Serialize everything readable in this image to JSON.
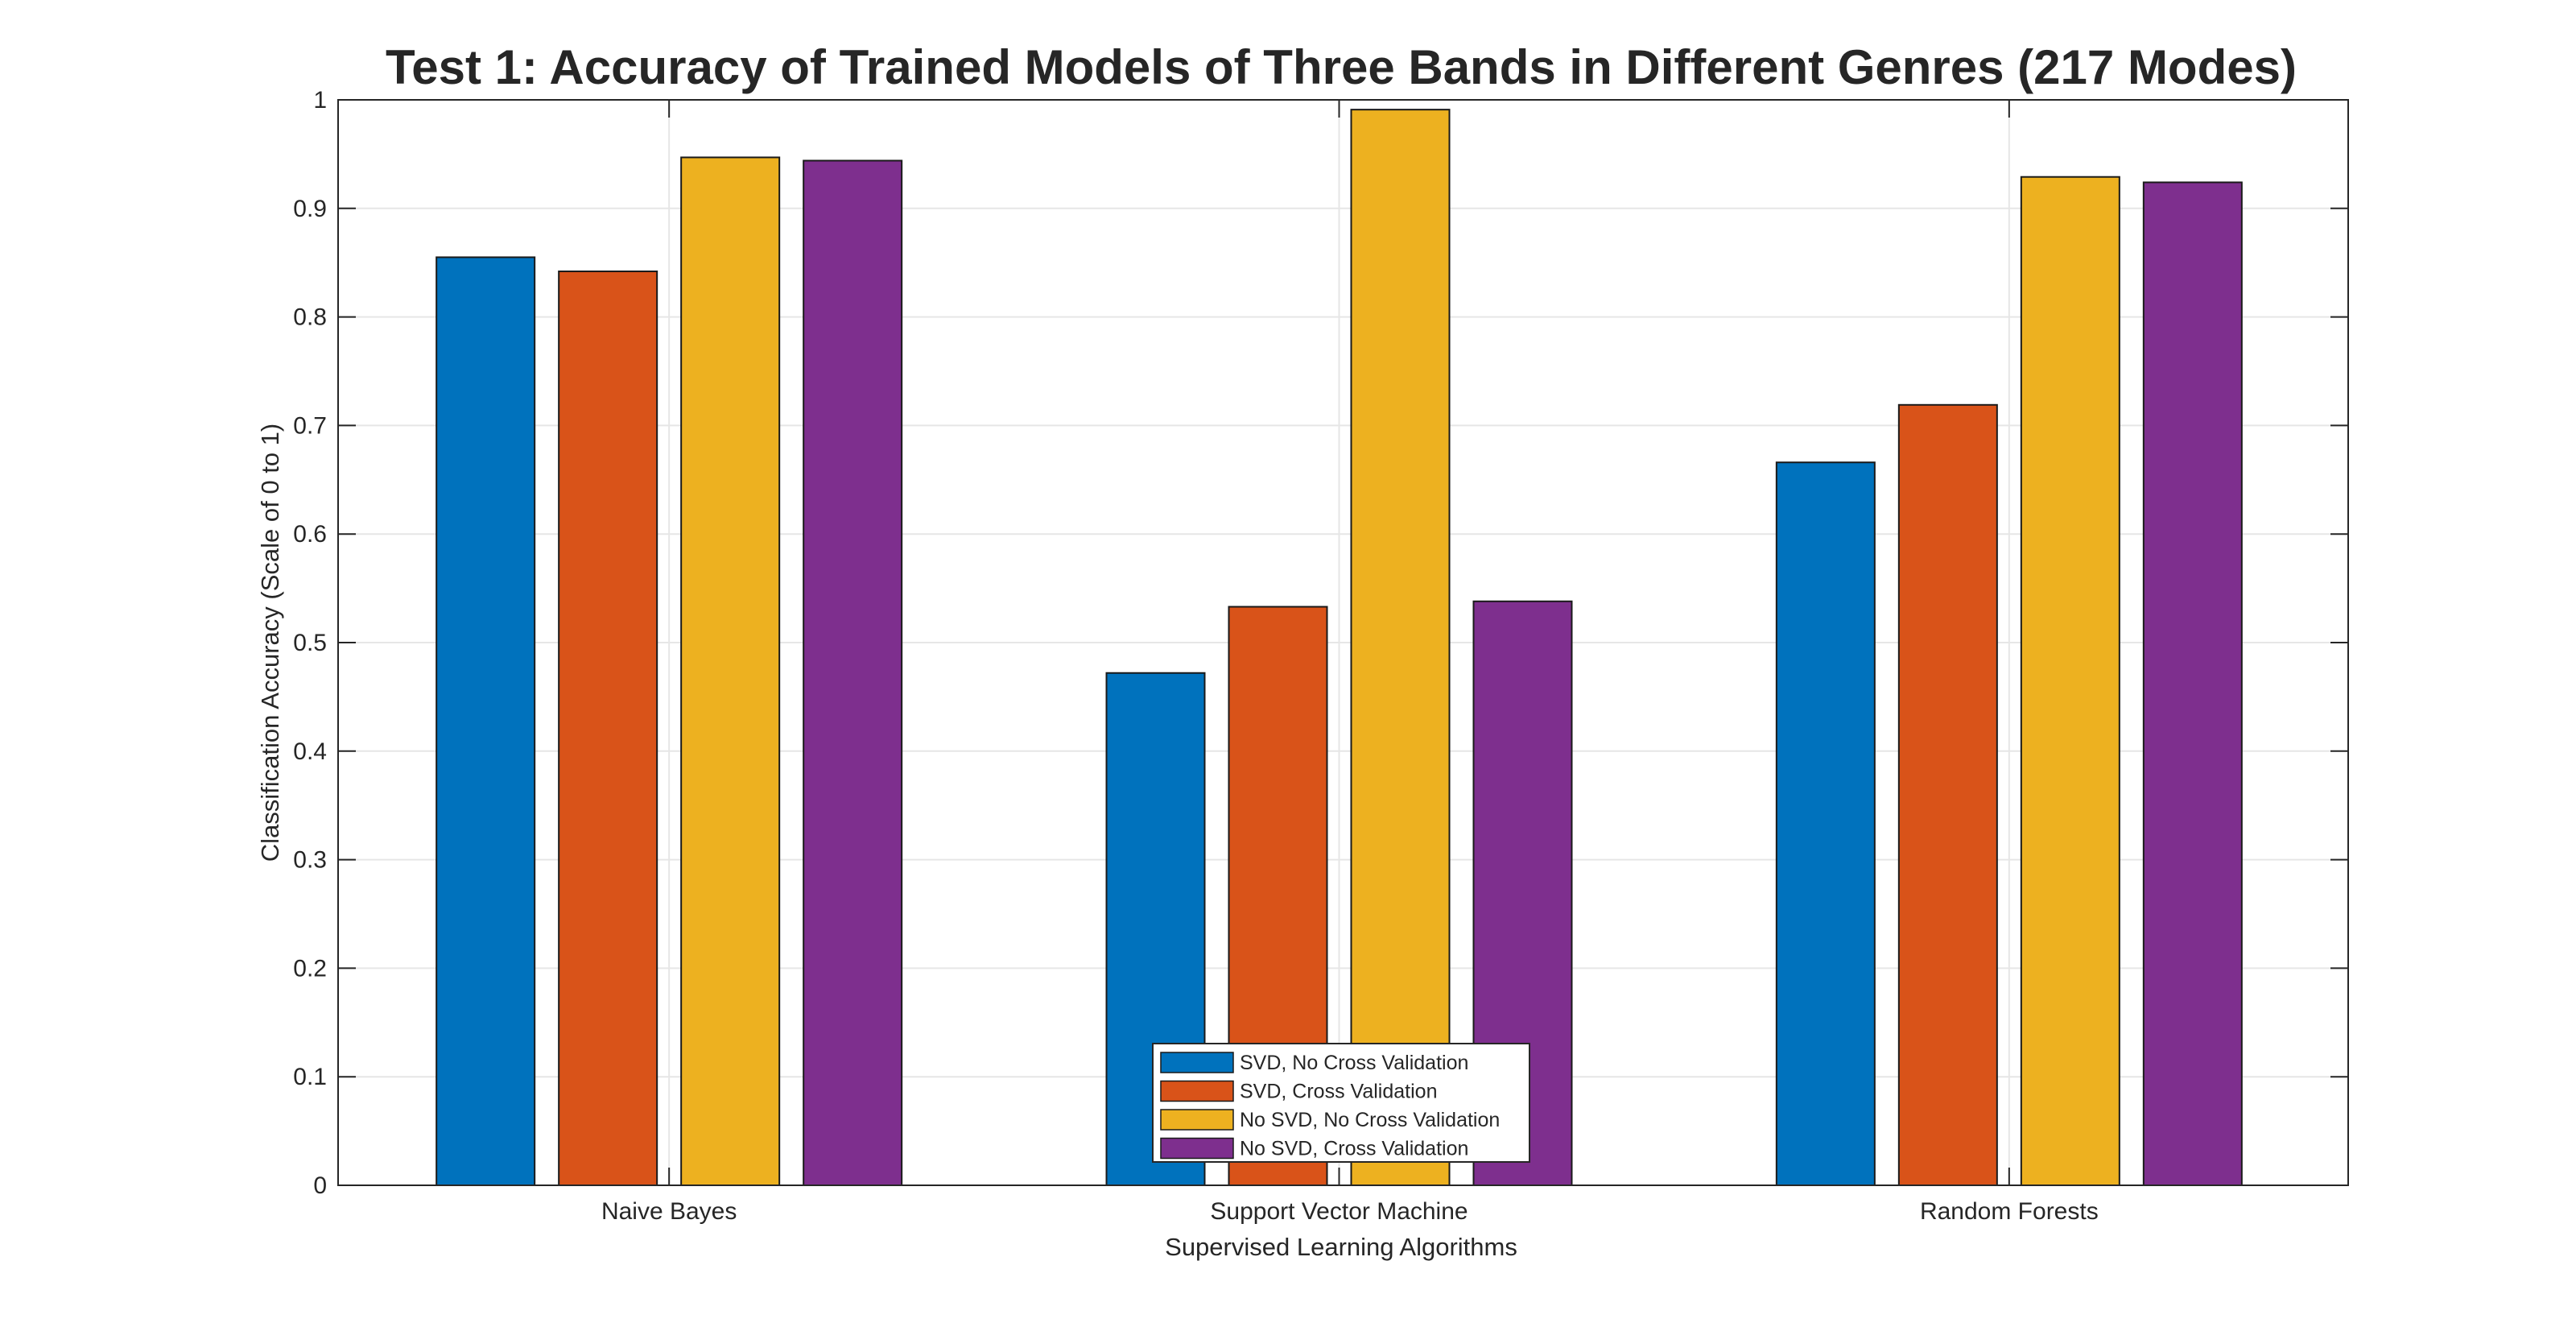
{
  "chart_data": {
    "type": "bar",
    "title": "Test 1: Accuracy of Trained Models of Three Bands in Different Genres (217 Modes)",
    "xlabel": "Supervised Learning Algorithms",
    "ylabel": "Classification Accuracy (Scale of 0 to 1)",
    "categories": [
      "Naive Bayes",
      "Support Vector Machine",
      "Random Forests"
    ],
    "ylim": [
      0,
      1
    ],
    "yticks": [
      "0",
      "0.1",
      "0.2",
      "0.3",
      "0.4",
      "0.5",
      "0.6",
      "0.7",
      "0.8",
      "0.9",
      "1"
    ],
    "grid": true,
    "legend_placement": "bottom-center",
    "series": [
      {
        "name": "SVD, No Cross Validation",
        "color": "#0072BD",
        "values": [
          0.855,
          0.472,
          0.666
        ]
      },
      {
        "name": "SVD, Cross Validation",
        "color": "#D95319",
        "values": [
          0.842,
          0.533,
          0.719
        ]
      },
      {
        "name": "No SVD, No Cross Validation",
        "color": "#EDB120",
        "values": [
          0.947,
          0.991,
          0.929
        ]
      },
      {
        "name": "No SVD, Cross Validation",
        "color": "#7E2F8E",
        "values": [
          0.944,
          0.538,
          0.924
        ]
      }
    ]
  }
}
